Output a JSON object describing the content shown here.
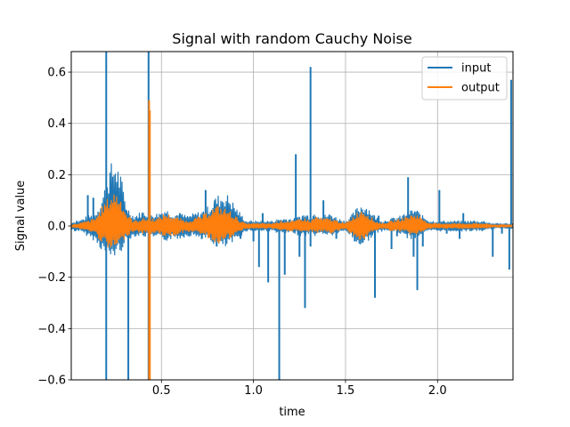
{
  "chart_data": {
    "type": "line",
    "title": "Signal with random Cauchy Noise",
    "xlabel": "time",
    "ylabel": "Signal value",
    "xlim": [
      0.01,
      2.41
    ],
    "ylim": [
      -0.6,
      0.68
    ],
    "x_ticks": [
      0.5,
      1.0,
      1.5,
      2.0
    ],
    "x_tick_labels": [
      "0.5",
      "1.0",
      "1.5",
      "2.0"
    ],
    "y_ticks": [
      -0.6,
      -0.4,
      -0.2,
      0.0,
      0.2,
      0.4,
      0.6
    ],
    "y_tick_labels": [
      "−0.6",
      "−0.4",
      "−0.2",
      "0.0",
      "0.2",
      "0.4",
      "0.6"
    ],
    "grid": true,
    "legend_position": "top-right",
    "series": [
      {
        "name": "input",
        "color": "#1f77b4",
        "envelope_x": [
          0.01,
          0.05,
          0.1,
          0.14,
          0.18,
          0.22,
          0.25,
          0.28,
          0.31,
          0.35,
          0.4,
          0.44,
          0.48,
          0.52,
          0.56,
          0.6,
          0.64,
          0.68,
          0.72,
          0.76,
          0.8,
          0.84,
          0.87,
          0.9,
          0.93,
          0.96,
          1.0,
          1.05,
          1.1,
          1.15,
          1.2,
          1.23,
          1.25,
          1.28,
          1.31,
          1.34,
          1.37,
          1.42,
          1.46,
          1.5,
          1.53,
          1.56,
          1.59,
          1.62,
          1.66,
          1.7,
          1.75,
          1.8,
          1.84,
          1.88,
          1.92,
          1.96,
          2.0,
          2.05,
          2.1,
          2.15,
          2.2,
          2.25,
          2.3,
          2.35,
          2.41
        ],
        "envelope_upper": [
          0.015,
          0.02,
          0.04,
          0.05,
          0.12,
          0.24,
          0.27,
          0.2,
          0.08,
          0.04,
          0.06,
          0.05,
          0.05,
          0.07,
          0.05,
          0.05,
          0.04,
          0.05,
          0.06,
          0.08,
          0.12,
          0.13,
          0.12,
          0.08,
          0.05,
          0.02,
          0.02,
          0.02,
          0.02,
          0.03,
          0.03,
          0.03,
          0.04,
          0.05,
          0.04,
          0.06,
          0.04,
          0.05,
          0.03,
          0.02,
          0.04,
          0.07,
          0.09,
          0.08,
          0.04,
          0.02,
          0.03,
          0.04,
          0.06,
          0.07,
          0.04,
          0.02,
          0.02,
          0.02,
          0.02,
          0.02,
          0.02,
          0.02,
          0.01,
          0.01,
          0.01
        ],
        "envelope_lower": [
          -0.015,
          -0.02,
          -0.04,
          -0.06,
          -0.1,
          -0.13,
          -0.12,
          -0.1,
          -0.06,
          -0.04,
          -0.04,
          -0.05,
          -0.05,
          -0.06,
          -0.05,
          -0.05,
          -0.04,
          -0.04,
          -0.05,
          -0.06,
          -0.08,
          -0.09,
          -0.08,
          -0.06,
          -0.04,
          -0.02,
          -0.02,
          -0.02,
          -0.02,
          -0.03,
          -0.03,
          -0.03,
          -0.04,
          -0.04,
          -0.03,
          -0.04,
          -0.03,
          -0.04,
          -0.03,
          -0.02,
          -0.04,
          -0.07,
          -0.08,
          -0.06,
          -0.03,
          -0.02,
          -0.02,
          -0.03,
          -0.05,
          -0.05,
          -0.03,
          -0.02,
          -0.02,
          -0.02,
          -0.02,
          -0.02,
          -0.02,
          -0.02,
          -0.01,
          -0.01,
          -0.01
        ],
        "spikes": [
          {
            "x": 0.03,
            "y": -0.02
          },
          {
            "x": 0.04,
            "y": 0.02
          },
          {
            "x": 0.1,
            "y": 0.12
          },
          {
            "x": 0.13,
            "y": 0.11
          },
          {
            "x": 0.2,
            "y": 0.68
          },
          {
            "x": 0.2,
            "y": -0.6
          },
          {
            "x": 0.32,
            "y": -0.6
          },
          {
            "x": 0.31,
            "y": 0.06
          },
          {
            "x": 0.43,
            "y": 0.68
          },
          {
            "x": 0.43,
            "y": -0.6
          },
          {
            "x": 0.6,
            "y": 0.05
          },
          {
            "x": 0.72,
            "y": -0.05
          },
          {
            "x": 0.74,
            "y": 0.14
          },
          {
            "x": 0.79,
            "y": 0.1
          },
          {
            "x": 0.8,
            "y": -0.08
          },
          {
            "x": 0.93,
            "y": -0.05
          },
          {
            "x": 1.0,
            "y": -0.06
          },
          {
            "x": 1.03,
            "y": -0.16
          },
          {
            "x": 1.05,
            "y": 0.05
          },
          {
            "x": 1.08,
            "y": -0.22
          },
          {
            "x": 1.14,
            "y": -0.6
          },
          {
            "x": 1.17,
            "y": -0.19
          },
          {
            "x": 1.23,
            "y": 0.28
          },
          {
            "x": 1.25,
            "y": -0.12
          },
          {
            "x": 1.28,
            "y": -0.32
          },
          {
            "x": 1.31,
            "y": 0.62
          },
          {
            "x": 1.31,
            "y": -0.08
          },
          {
            "x": 1.38,
            "y": 0.1
          },
          {
            "x": 1.45,
            "y": -0.05
          },
          {
            "x": 1.55,
            "y": -0.06
          },
          {
            "x": 1.66,
            "y": -0.28
          },
          {
            "x": 1.68,
            "y": 0.04
          },
          {
            "x": 1.75,
            "y": -0.09
          },
          {
            "x": 1.78,
            "y": -0.04
          },
          {
            "x": 1.84,
            "y": 0.19
          },
          {
            "x": 1.87,
            "y": -0.12
          },
          {
            "x": 1.89,
            "y": -0.25
          },
          {
            "x": 1.92,
            "y": -0.08
          },
          {
            "x": 2.01,
            "y": 0.14
          },
          {
            "x": 2.05,
            "y": -0.03
          },
          {
            "x": 2.12,
            "y": -0.05
          },
          {
            "x": 2.14,
            "y": 0.05
          },
          {
            "x": 2.18,
            "y": -0.01
          },
          {
            "x": 2.2,
            "y": 0.02
          },
          {
            "x": 2.25,
            "y": -0.01
          },
          {
            "x": 2.3,
            "y": -0.12
          },
          {
            "x": 2.35,
            "y": -0.03
          },
          {
            "x": 2.39,
            "y": -0.17
          },
          {
            "x": 2.4,
            "y": 0.57
          }
        ]
      },
      {
        "name": "output",
        "color": "#ff7f0e",
        "envelope_x": [
          0.01,
          0.05,
          0.1,
          0.14,
          0.18,
          0.22,
          0.25,
          0.28,
          0.31,
          0.35,
          0.4,
          0.44,
          0.48,
          0.52,
          0.56,
          0.6,
          0.64,
          0.68,
          0.72,
          0.76,
          0.8,
          0.84,
          0.87,
          0.9,
          0.93,
          0.96,
          1.0,
          1.05,
          1.1,
          1.15,
          1.2,
          1.23,
          1.25,
          1.28,
          1.31,
          1.34,
          1.37,
          1.42,
          1.46,
          1.5,
          1.53,
          1.56,
          1.59,
          1.62,
          1.66,
          1.7,
          1.75,
          1.8,
          1.84,
          1.88,
          1.92,
          1.96,
          2.0,
          2.05,
          2.1,
          2.15,
          2.2,
          2.25,
          2.3,
          2.35,
          2.41
        ],
        "envelope_upper": [
          0.005,
          0.01,
          0.02,
          0.03,
          0.08,
          0.12,
          0.14,
          0.11,
          0.05,
          0.02,
          0.03,
          0.03,
          0.03,
          0.05,
          0.04,
          0.03,
          0.02,
          0.03,
          0.04,
          0.06,
          0.08,
          0.07,
          0.06,
          0.04,
          0.02,
          0.01,
          0.01,
          0.01,
          0.01,
          0.02,
          0.02,
          0.02,
          0.03,
          0.03,
          0.02,
          0.04,
          0.03,
          0.03,
          0.02,
          0.01,
          0.03,
          0.05,
          0.07,
          0.05,
          0.02,
          0.01,
          0.02,
          0.03,
          0.04,
          0.05,
          0.03,
          0.01,
          0.01,
          0.01,
          0.01,
          0.01,
          0.01,
          0.01,
          0.005,
          0.005,
          0.005
        ],
        "envelope_lower": [
          -0.005,
          -0.01,
          -0.02,
          -0.03,
          -0.07,
          -0.1,
          -0.09,
          -0.07,
          -0.04,
          -0.02,
          -0.03,
          -0.03,
          -0.03,
          -0.04,
          -0.04,
          -0.03,
          -0.02,
          -0.03,
          -0.03,
          -0.05,
          -0.07,
          -0.06,
          -0.05,
          -0.04,
          -0.02,
          -0.01,
          -0.01,
          -0.01,
          -0.01,
          -0.02,
          -0.02,
          -0.02,
          -0.02,
          -0.03,
          -0.02,
          -0.03,
          -0.02,
          -0.03,
          -0.02,
          -0.01,
          -0.03,
          -0.05,
          -0.06,
          -0.04,
          -0.02,
          -0.01,
          -0.02,
          -0.02,
          -0.03,
          -0.04,
          -0.02,
          -0.01,
          -0.01,
          -0.01,
          -0.01,
          -0.01,
          -0.01,
          -0.01,
          -0.005,
          -0.005,
          -0.005
        ],
        "spikes": [
          {
            "x": 0.433,
            "y": 0.49
          },
          {
            "x": 0.433,
            "y": -0.6
          },
          {
            "x": 0.437,
            "y": 0.45
          },
          {
            "x": 0.437,
            "y": -0.6
          }
        ]
      }
    ]
  }
}
